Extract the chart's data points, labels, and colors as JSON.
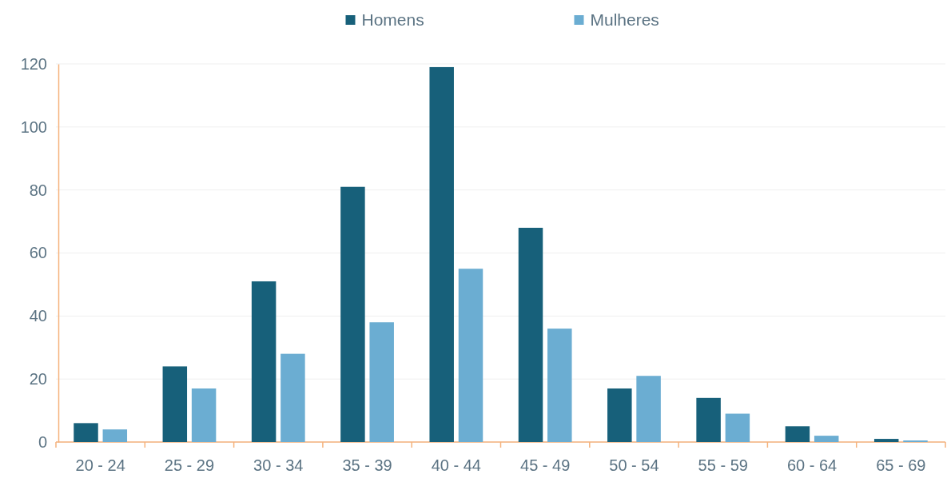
{
  "chart_data": {
    "type": "bar",
    "categories": [
      "20 - 24",
      "25 - 29",
      "30 - 34",
      "35 - 39",
      "40 - 44",
      "45 - 49",
      "50 - 54",
      "55 - 59",
      "60 - 64",
      "65 - 69"
    ],
    "series": [
      {
        "name": "Homens",
        "color": "#17607a",
        "values": [
          6,
          24,
          51,
          81,
          119,
          68,
          17,
          14,
          5,
          1
        ]
      },
      {
        "name": "Mulheres",
        "color": "#6badd2",
        "values": [
          4,
          17,
          28,
          38,
          55,
          36,
          21,
          9,
          2,
          0.5
        ]
      }
    ],
    "ylim": [
      0,
      120
    ],
    "yticks": [
      0,
      20,
      40,
      60,
      80,
      100,
      120
    ],
    "grid": "y",
    "legend": "top"
  }
}
